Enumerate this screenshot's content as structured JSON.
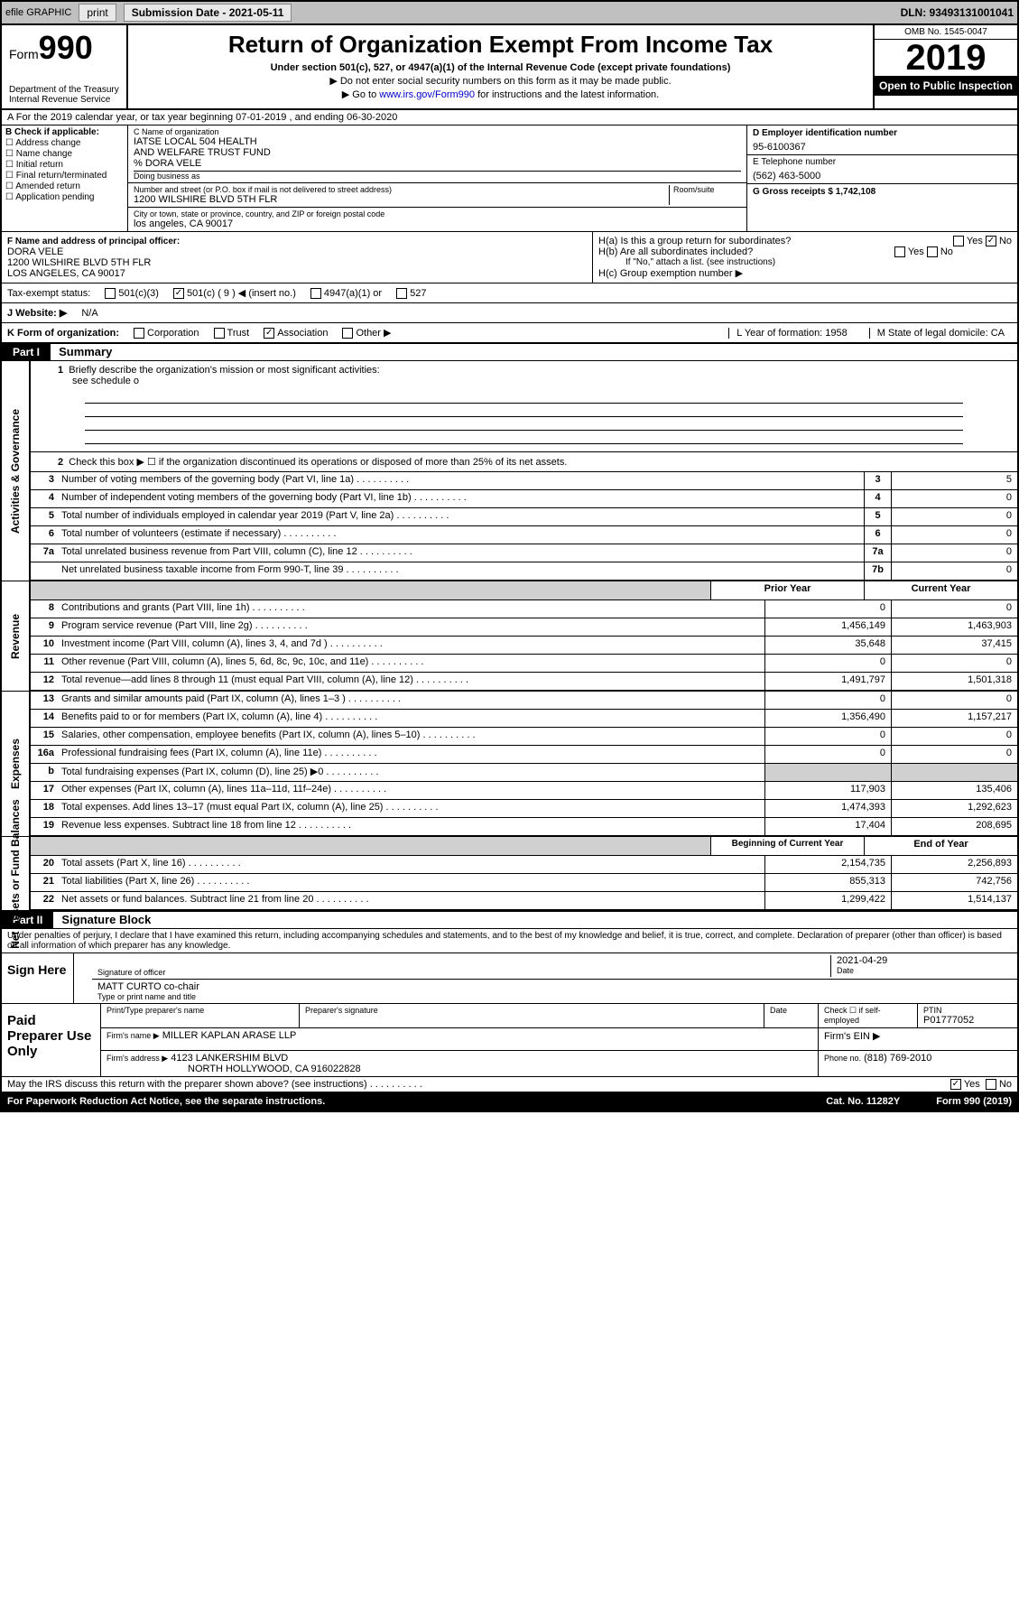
{
  "topbar": {
    "efile": "efile GRAPHIC",
    "print": "print",
    "sub_label": "Submission Date - 2021-05-11",
    "dln": "DLN: 93493131001041"
  },
  "header": {
    "form_small": "Form",
    "form_big": "990",
    "dept": "Department of the Treasury\nInternal Revenue Service",
    "title": "Return of Organization Exempt From Income Tax",
    "sub1": "Under section 501(c), 527, or 4947(a)(1) of the Internal Revenue Code (except private foundations)",
    "sub2": "▶ Do not enter social security numbers on this form as it may be made public.",
    "sub3_pre": "▶ Go to ",
    "sub3_link": "www.irs.gov/Form990",
    "sub3_post": " for instructions and the latest information.",
    "omb": "OMB No. 1545-0047",
    "year": "2019",
    "inspect": "Open to Public Inspection"
  },
  "line_a": "A For the 2019 calendar year, or tax year beginning 07-01-2019    , and ending 06-30-2020",
  "box_b": {
    "title": "B Check if applicable:",
    "items": [
      "Address change",
      "Name change",
      "Initial return",
      "Final return/terminated",
      "Amended return",
      "Application pending"
    ]
  },
  "box_c": {
    "c_label": "C Name of organization",
    "org1": "IATSE LOCAL 504 HEALTH",
    "org2": "AND WELFARE TRUST FUND",
    "org3": "% DORA VELE",
    "dba": "Doing business as",
    "addr_label": "Number and street (or P.O. box if mail is not delivered to street address)",
    "room": "Room/suite",
    "addr": "1200 WILSHIRE BLVD 5TH FLR",
    "city_label": "City or town, state or province, country, and ZIP or foreign postal code",
    "city": "los angeles, CA  90017"
  },
  "box_d": {
    "d_label": "D Employer identification number",
    "ein": "95-6100367",
    "e_label": "E Telephone number",
    "phone": "(562) 463-5000",
    "g_label": "G Gross receipts $",
    "g_val": "1,742,108"
  },
  "box_f": {
    "f_label": "F  Name and address of principal officer:",
    "name": "DORA VELE",
    "addr1": "1200 WILSHIRE BLVD 5TH FLR",
    "addr2": "LOS ANGELES, CA  90017"
  },
  "box_h": {
    "ha": "H(a)  Is this a group return for subordinates?",
    "hb": "H(b)  Are all subordinates included?",
    "hb_note": "If \"No,\" attach a list. (see instructions)",
    "hc": "H(c)  Group exemption number ▶"
  },
  "status": {
    "label": "Tax-exempt status:",
    "opt1": "501(c)(3)",
    "opt2": "501(c) ( 9 ) ◀ (insert no.)",
    "opt3": "4947(a)(1) or",
    "opt4": "527"
  },
  "line_j": {
    "label": "J   Website: ▶",
    "val": "N/A"
  },
  "line_k": {
    "label": "K Form of organization:",
    "opts": [
      "Corporation",
      "Trust",
      "Association",
      "Other ▶"
    ],
    "l": "L Year of formation: 1958",
    "m": "M State of legal domicile: CA"
  },
  "part1": {
    "header": "Part I",
    "title": "Summary",
    "side1": "Activities & Governance",
    "side2": "Revenue",
    "side3": "Expenses",
    "side4": "Net Assets or Fund Balances",
    "q1": "Briefly describe the organization's mission or most significant activities:",
    "q1_val": "see schedule o",
    "q2": "Check this box ▶ ☐  if the organization discontinued its operations or disposed of more than 25% of its net assets.",
    "prior": "Prior Year",
    "current": "Current Year",
    "begin": "Beginning of Current Year",
    "end": "End of Year",
    "lines": [
      {
        "n": "3",
        "d": "Number of voting members of the governing body (Part VI, line 1a)",
        "b": "3",
        "v1": "",
        "v2": "5"
      },
      {
        "n": "4",
        "d": "Number of independent voting members of the governing body (Part VI, line 1b)",
        "b": "4",
        "v1": "",
        "v2": "0"
      },
      {
        "n": "5",
        "d": "Total number of individuals employed in calendar year 2019 (Part V, line 2a)",
        "b": "5",
        "v1": "",
        "v2": "0"
      },
      {
        "n": "6",
        "d": "Total number of volunteers (estimate if necessary)",
        "b": "6",
        "v1": "",
        "v2": "0"
      },
      {
        "n": "7a",
        "d": "Total unrelated business revenue from Part VIII, column (C), line 12",
        "b": "7a",
        "v1": "",
        "v2": "0"
      },
      {
        "n": "",
        "d": "Net unrelated business taxable income from Form 990-T, line 39",
        "b": "7b",
        "v1": "",
        "v2": "0"
      }
    ],
    "rev": [
      {
        "n": "8",
        "d": "Contributions and grants (Part VIII, line 1h)",
        "v1": "0",
        "v2": "0"
      },
      {
        "n": "9",
        "d": "Program service revenue (Part VIII, line 2g)",
        "v1": "1,456,149",
        "v2": "1,463,903"
      },
      {
        "n": "10",
        "d": "Investment income (Part VIII, column (A), lines 3, 4, and 7d )",
        "v1": "35,648",
        "v2": "37,415"
      },
      {
        "n": "11",
        "d": "Other revenue (Part VIII, column (A), lines 5, 6d, 8c, 9c, 10c, and 11e)",
        "v1": "0",
        "v2": "0"
      },
      {
        "n": "12",
        "d": "Total revenue—add lines 8 through 11 (must equal Part VIII, column (A), line 12)",
        "v1": "1,491,797",
        "v2": "1,501,318"
      }
    ],
    "exp": [
      {
        "n": "13",
        "d": "Grants and similar amounts paid (Part IX, column (A), lines 1–3 )",
        "v1": "0",
        "v2": "0"
      },
      {
        "n": "14",
        "d": "Benefits paid to or for members (Part IX, column (A), line 4)",
        "v1": "1,356,490",
        "v2": "1,157,217"
      },
      {
        "n": "15",
        "d": "Salaries, other compensation, employee benefits (Part IX, column (A), lines 5–10)",
        "v1": "0",
        "v2": "0"
      },
      {
        "n": "16a",
        "d": "Professional fundraising fees (Part IX, column (A), line 11e)",
        "v1": "0",
        "v2": "0"
      },
      {
        "n": "b",
        "d": "Total fundraising expenses (Part IX, column (D), line 25) ▶0",
        "v1": "",
        "v2": ""
      },
      {
        "n": "17",
        "d": "Other expenses (Part IX, column (A), lines 11a–11d, 11f–24e)",
        "v1": "117,903",
        "v2": "135,406"
      },
      {
        "n": "18",
        "d": "Total expenses. Add lines 13–17 (must equal Part IX, column (A), line 25)",
        "v1": "1,474,393",
        "v2": "1,292,623"
      },
      {
        "n": "19",
        "d": "Revenue less expenses. Subtract line 18 from line 12",
        "v1": "17,404",
        "v2": "208,695"
      }
    ],
    "net": [
      {
        "n": "20",
        "d": "Total assets (Part X, line 16)",
        "v1": "2,154,735",
        "v2": "2,256,893"
      },
      {
        "n": "21",
        "d": "Total liabilities (Part X, line 26)",
        "v1": "855,313",
        "v2": "742,756"
      },
      {
        "n": "22",
        "d": "Net assets or fund balances. Subtract line 21 from line 20",
        "v1": "1,299,422",
        "v2": "1,514,137"
      }
    ]
  },
  "part2": {
    "header": "Part II",
    "title": "Signature Block",
    "decl": "Under penalties of perjury, I declare that I have examined this return, including accompanying schedules and statements, and to the best of my knowledge and belief, it is true, correct, and complete. Declaration of preparer (other than officer) is based on all information of which preparer has any knowledge.",
    "sign_here": "Sign Here",
    "sig_officer": "Signature of officer",
    "sig_date": "2021-04-29",
    "date_label": "Date",
    "name_title": "MATT CURTO  co-chair",
    "name_label": "Type or print name and title",
    "paid": "Paid Preparer Use Only",
    "prep_name_label": "Print/Type preparer's name",
    "prep_sig_label": "Preparer's signature",
    "prep_date": "Date",
    "check_if": "Check ☐ if self-employed",
    "ptin_label": "PTIN",
    "ptin": "P01777052",
    "firm_name_label": "Firm's name    ▶",
    "firm_name": "MILLER KAPLAN ARASE LLP",
    "firm_ein": "Firm's EIN ▶",
    "firm_addr_label": "Firm's address ▶",
    "firm_addr1": "4123 LANKERSHIM BLVD",
    "firm_addr2": "NORTH HOLLYWOOD, CA  916022828",
    "firm_phone_label": "Phone no.",
    "firm_phone": "(818) 769-2010",
    "discuss": "May the IRS discuss this return with the preparer shown above? (see instructions)",
    "yes": "Yes",
    "no": "No"
  },
  "footer": {
    "left": "For Paperwork Reduction Act Notice, see the separate instructions.",
    "mid": "Cat. No. 11282Y",
    "right": "Form 990 (2019)"
  }
}
